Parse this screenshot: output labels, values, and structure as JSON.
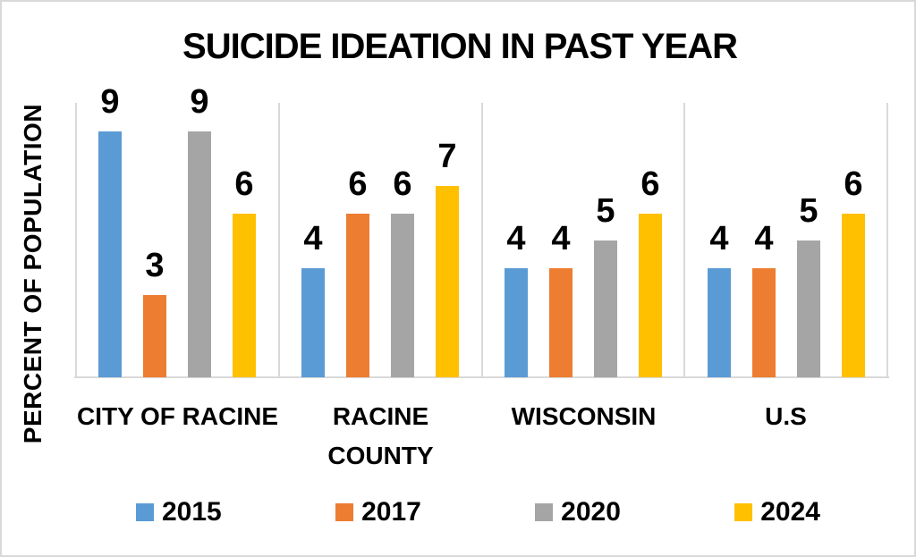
{
  "chart_data": {
    "type": "bar",
    "title": "SUICIDE IDEATION IN PAST YEAR",
    "ylabel": "PERCENT OF POPULATION",
    "xlabel": "",
    "categories": [
      "CITY OF RACINE",
      "RACINE COUNTY",
      "WISCONSIN",
      "U.S"
    ],
    "categories_display": [
      [
        "CITY OF RACINE"
      ],
      [
        "RACINE",
        "COUNTY"
      ],
      [
        "WISCONSIN"
      ],
      [
        "U.S"
      ]
    ],
    "series": [
      {
        "name": "2015",
        "color": "#5B9BD5",
        "values": [
          9,
          4,
          4,
          4
        ]
      },
      {
        "name": "2017",
        "color": "#ED7D31",
        "values": [
          3,
          6,
          4,
          4
        ]
      },
      {
        "name": "2020",
        "color": "#A5A5A5",
        "values": [
          9,
          6,
          5,
          5
        ]
      },
      {
        "name": "2024",
        "color": "#FFC000",
        "values": [
          6,
          7,
          6,
          6
        ]
      }
    ],
    "ylim": [
      0,
      10
    ],
    "y_ticks_visible": false,
    "grid": false,
    "data_labels": true,
    "legend_position": "bottom",
    "legend_labels": [
      "2015",
      "2017",
      "2020",
      "2024"
    ],
    "colors": {
      "axis_line": "#D9D9D9",
      "border": "#D9D9D9",
      "text": "#000000",
      "background": "#FFFFFF"
    }
  }
}
